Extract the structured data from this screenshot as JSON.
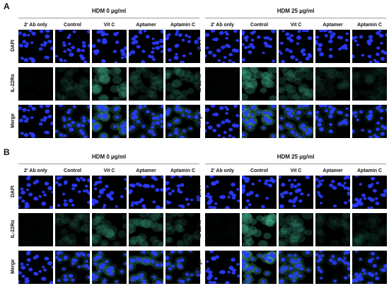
{
  "panels": [
    {
      "letter": "A",
      "groups": [
        {
          "title": "HDM 0 µg/ml",
          "columns": [
            "2' Ab only",
            "Control",
            "Vit C",
            "Aptamer",
            "Aptamin C"
          ],
          "rows": [
            "DAPI",
            "IL-22Rα",
            "Merge"
          ],
          "green": [
            0.02,
            0.18,
            0.45,
            0.22,
            0.3
          ]
        },
        {
          "title": "HDM 25 µg/ml",
          "columns": [
            "2' Ab only",
            "Control",
            "Vit C",
            "Aptamer",
            "Aptamin C"
          ],
          "rows": [
            "DAPI",
            "IL-22Rα",
            "Merge"
          ],
          "green": [
            0.02,
            0.55,
            0.35,
            0.15,
            0.12
          ]
        }
      ]
    },
    {
      "letter": "B",
      "groups": [
        {
          "title": "HDM 0 µg/ml",
          "columns": [
            "2' Ab only",
            "Control",
            "Vit C",
            "Aptamer",
            "Aptamin C"
          ],
          "rows": [
            "DAPI",
            "IL-22Rα",
            "Merge"
          ],
          "green": [
            0.02,
            0.2,
            0.3,
            0.35,
            0.22
          ]
        },
        {
          "title": "HDM 25 µg/ml",
          "columns": [
            "2' Ab only",
            "Control",
            "Vit C",
            "Aptamer",
            "Aptamin C"
          ],
          "rows": [
            "DAPI",
            "IL-22Rα",
            "Merge"
          ],
          "green": [
            0.02,
            0.6,
            0.35,
            0.15,
            0.12
          ]
        }
      ]
    }
  ],
  "colors": {
    "nucleus": "#2a3cff",
    "cytoplasm": "#3fae8a",
    "background": "#000000",
    "rule": "#9a9a9a"
  }
}
